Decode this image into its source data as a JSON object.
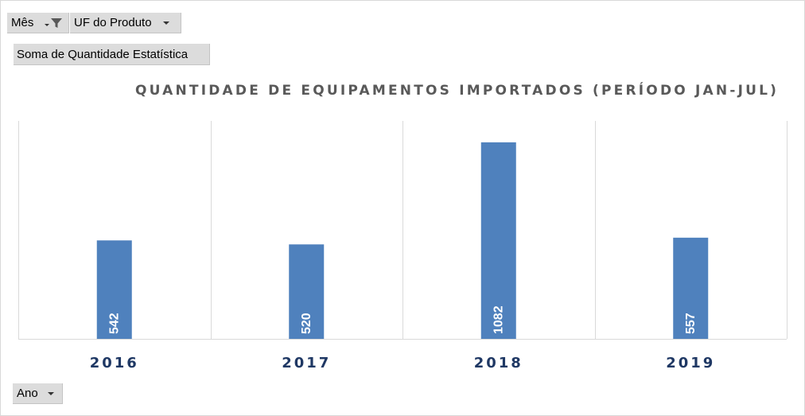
{
  "pivot": {
    "filter_fields": [
      {
        "label": "Mês"
      },
      {
        "label": "UF do Produto"
      }
    ],
    "values_field": "Soma de Quantidade Estatística",
    "axis_field": "Ano"
  },
  "icons": {
    "filter": "funnel-icon",
    "dropdown": "chevron-down-icon"
  },
  "colors": {
    "bar": "#4f81bd",
    "axis_label": "#1f3864",
    "title": "#595959"
  },
  "chart_data": {
    "type": "bar",
    "title": "QUANTIDADE DE EQUIPAMENTOS IMPORTADOS (PERÍODO JAN-JUL)",
    "categories": [
      "2016",
      "2017",
      "2018",
      "2019"
    ],
    "values": [
      542,
      520,
      1082,
      557
    ],
    "data_labels": [
      "542",
      "520",
      "1082",
      "557"
    ],
    "ylim": [
      0,
      1200
    ],
    "grid": "vertical category separators",
    "legend": "none",
    "data_label_orientation": "vertical, inside base of bar"
  }
}
